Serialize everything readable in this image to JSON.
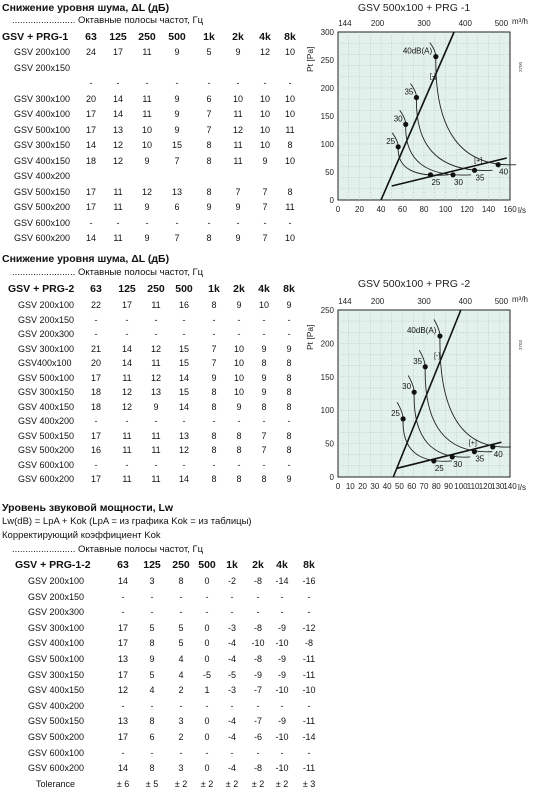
{
  "section1": {
    "title": "Снижение уровня шума, ΔL (дБ)",
    "subtitle": "........................ Октавные полосы частот, Гц",
    "header": [
      "GSV + PRG-1",
      "63",
      "125",
      "250",
      "500",
      "1k",
      "2k",
      "4k",
      "8k"
    ],
    "rows": [
      [
        "GSV  200x100",
        "24",
        "17",
        "11",
        "9",
        "5",
        "9",
        "12",
        "10"
      ],
      [
        "GSV  200x150",
        "",
        "",
        "",
        "",
        "",
        "",
        "",
        ""
      ],
      [
        "",
        "-",
        "-",
        "-",
        "-",
        "-",
        "-",
        "-",
        "-"
      ],
      [
        "GSV  300x100",
        "20",
        "14",
        "11",
        "9",
        "6",
        "10",
        "10",
        "10"
      ],
      [
        "GSV  400x100",
        "17",
        "14",
        "11",
        "9",
        "7",
        "11",
        "10",
        "10"
      ],
      [
        "GSV  500x100",
        "17",
        "13",
        "10",
        "9",
        "7",
        "12",
        "10",
        "11"
      ],
      [
        "GSV  300x150",
        "14",
        "12",
        "10",
        "15",
        "8",
        "11",
        "10",
        "8"
      ],
      [
        "GSV  400x150",
        "18",
        "12",
        "9",
        "7",
        "8",
        "11",
        "9",
        "10"
      ],
      [
        "GSV  400x200",
        "",
        "",
        "",
        "",
        "",
        "",
        "",
        ""
      ],
      [
        "GSV  500x150",
        "17",
        "11",
        "12",
        "13",
        "8",
        "7",
        "7",
        "8"
      ],
      [
        "GSV  500x200",
        "17",
        "11",
        "9",
        "6",
        "9",
        "9",
        "7",
        "11"
      ],
      [
        "GSV  600x100",
        "-",
        "-",
        "-",
        "-",
        "-",
        "-",
        "-",
        "-"
      ],
      [
        "GSV  600x200",
        "14",
        "11",
        "9",
        "7",
        "8",
        "9",
        "7",
        "10"
      ]
    ]
  },
  "section2": {
    "title": "Снижение уровня шума, ΔL (дБ)",
    "subtitle": "........................ Октавные полосы частот, Гц",
    "header": [
      "GSV + PRG-2",
      "63",
      "125",
      "250",
      "500",
      "1k",
      "2k",
      "4k",
      "8k"
    ],
    "rows": [
      [
        "GSV  200x100",
        "22",
        "17",
        "11",
        "16",
        "8",
        "9",
        "10",
        "9"
      ],
      [
        "GSV  200x150",
        "-",
        "-",
        "-",
        "-",
        "-",
        "-",
        "-",
        "-"
      ],
      [
        "GSV  200x300",
        "-",
        "-",
        "-",
        "-",
        "-",
        "-",
        "-",
        "-"
      ],
      [
        "GSV  300x100",
        "21",
        "14",
        "12",
        "15",
        "7",
        "10",
        "9",
        "9"
      ],
      [
        "GSV400x100",
        "20",
        "14",
        "11",
        "15",
        "7",
        "10",
        "8",
        "8"
      ],
      [
        "GSV  500x100",
        "17",
        "11",
        "12",
        "14",
        "9",
        "10",
        "9",
        "8"
      ],
      [
        "GSV  300x150",
        "18",
        "12",
        "13",
        "15",
        "8",
        "10",
        "9",
        "8"
      ],
      [
        "GSV  400x150",
        "18",
        "12",
        "9",
        "14",
        "8",
        "9",
        "8",
        "8"
      ],
      [
        "GSV  400x200",
        "-",
        "-",
        "-",
        "-",
        "-",
        "-",
        "-",
        "-"
      ],
      [
        "GSV  500x150",
        "17",
        "11",
        "11",
        "13",
        "8",
        "8",
        "7",
        "8"
      ],
      [
        "GSV  500x200",
        "16",
        "11",
        "11",
        "12",
        "8",
        "8",
        "7",
        "8"
      ],
      [
        "GSV  600x100",
        "-",
        "-",
        "-",
        "-",
        "-",
        "-",
        "-",
        "-"
      ],
      [
        "GSV  600x200",
        "17",
        "11",
        "11",
        "14",
        "8",
        "8",
        "8",
        "9"
      ]
    ]
  },
  "section3": {
    "title": "Уровень звуковой мощности, Lw",
    "formula": "Lw(dB) = LpA + Kok (LpA = из графика Kok = из таблицы)",
    "correction": "Корректирующий коэффициент  Kok",
    "subtitle": "........................ Октавные полосы частот, Гц",
    "header": [
      "GSV + PRG-1-2",
      "63",
      "125",
      "250",
      "500",
      "1k",
      "2k",
      "4k",
      "8k"
    ],
    "rows": [
      [
        "GSV  200x100",
        "14",
        "3",
        "8",
        "0",
        "-2",
        "-8",
        "-14",
        "-16"
      ],
      [
        "GSV  200x150",
        "-",
        "-",
        "-",
        "-",
        "-",
        "-",
        "-",
        "-"
      ],
      [
        "GSV  200x300",
        "-",
        "-",
        "-",
        "-",
        "-",
        "-",
        "-",
        "-"
      ],
      [
        "GSV  300x100",
        "17",
        "5",
        "5",
        "0",
        "-3",
        "-8",
        "-9",
        "-12"
      ],
      [
        "GSV  400x100",
        "17",
        "8",
        "5",
        "0",
        "-4",
        "-10",
        "-10",
        "-8"
      ],
      [
        "GSV  500x100",
        "13",
        "9",
        "4",
        "0",
        "-4",
        "-8",
        "-9",
        "-11"
      ],
      [
        "GSV  300x150",
        "17",
        "5",
        "4",
        "-5",
        "-5",
        "-9",
        "-9",
        "-11"
      ],
      [
        "GSV  400x150",
        "12",
        "4",
        "2",
        "1",
        "-3",
        "-7",
        "-10",
        "-10"
      ],
      [
        "GSV  400x200",
        "-",
        "-",
        "-",
        "-",
        "-",
        "-",
        "-",
        "-"
      ],
      [
        "GSV  500x150",
        "13",
        "8",
        "3",
        "0",
        "-4",
        "-7",
        "-9",
        "-11"
      ],
      [
        "GSV  500x200",
        "17",
        "6",
        "2",
        "0",
        "-4",
        "-6",
        "-10",
        "-14"
      ],
      [
        "GSV  600x100",
        "-",
        "-",
        "-",
        "-",
        "-",
        "-",
        "-",
        "-"
      ],
      [
        "GSV  600x200",
        "14",
        "8",
        "3",
        "0",
        "-4",
        "-8",
        "-10",
        "-11"
      ]
    ],
    "tolerance": [
      "Tolerance",
      "± 6",
      "± 5",
      "± 2",
      "± 2",
      "± 2",
      "± 2",
      "± 2",
      "± 3"
    ]
  },
  "chart_data": [
    {
      "type": "line",
      "title": "GSV 500x100 + PRG -1",
      "xlabel": "l/s",
      "ylabel": "P_t [Pa]",
      "top_axis_label": "m³/h",
      "x_ticks": [
        "0",
        "20",
        "40",
        "60",
        "80",
        "100",
        "120",
        "140",
        "160"
      ],
      "y_ticks": [
        "0",
        "50",
        "100",
        "150",
        "200",
        "250",
        "300"
      ],
      "top_ticks": [
        "144",
        "200",
        "300",
        "400",
        "500"
      ],
      "xlim": [
        0,
        160
      ],
      "ylim": [
        0,
        300
      ],
      "grid": true,
      "side_code": "3700",
      "sound_labels": [
        "25",
        "30",
        "35",
        "40dB(A)"
      ],
      "lower_labels": [
        "25",
        "30",
        "35",
        "40"
      ],
      "bracket": "[-]",
      "bracket2": "[+]",
      "series": [
        {
          "points": [
            [
              40,
              0
            ],
            [
              108,
              300
            ]
          ]
        },
        {
          "points": [
            [
              50,
              25
            ],
            [
              157,
              75
            ]
          ]
        }
      ],
      "markers": [
        {
          "x": 56,
          "y": 95,
          "label": "25"
        },
        {
          "x": 63,
          "y": 135,
          "label": "30"
        },
        {
          "x": 73,
          "y": 183,
          "label": "35"
        },
        {
          "x": 91,
          "y": 256,
          "label": "40dB(A)"
        },
        {
          "x": 86,
          "y": 45,
          "label": "25"
        },
        {
          "x": 107,
          "y": 45,
          "label": "30"
        },
        {
          "x": 127,
          "y": 53,
          "label": "35"
        },
        {
          "x": 149,
          "y": 63,
          "label": "40"
        }
      ]
    },
    {
      "type": "line",
      "title": "GSV 500x100 + PRG -2",
      "xlabel": "l/s",
      "ylabel": "P_t [Pa]",
      "top_axis_label": "m³/h",
      "x_ticks": [
        "0",
        "10",
        "20",
        "30",
        "40",
        "50",
        "60",
        "70",
        "80",
        "90",
        "100",
        "110",
        "120",
        "130",
        "140"
      ],
      "y_ticks": [
        "0",
        "50",
        "100",
        "150",
        "200",
        "250"
      ],
      "top_ticks": [
        "144",
        "200",
        "300",
        "400",
        "500"
      ],
      "xlim": [
        0,
        140
      ],
      "ylim": [
        0,
        250
      ],
      "grid": true,
      "side_code": "3703",
      "sound_labels": [
        "25",
        "30",
        "35",
        "40dB(A)"
      ],
      "lower_labels": [
        "25",
        "30",
        "35",
        "40"
      ],
      "bracket": "[-]",
      "bracket2": "[+]",
      "series": [
        {
          "points": [
            [
              45,
              0
            ],
            [
              100,
              250
            ]
          ]
        },
        {
          "points": [
            [
              48,
              13
            ],
            [
              133,
              52
            ]
          ]
        }
      ],
      "markers": [
        {
          "x": 53,
          "y": 87,
          "label": "25"
        },
        {
          "x": 62,
          "y": 127,
          "label": "30"
        },
        {
          "x": 71,
          "y": 165,
          "label": "35"
        },
        {
          "x": 83,
          "y": 211,
          "label": "40dB(A)"
        },
        {
          "x": 78,
          "y": 24,
          "label": "25"
        },
        {
          "x": 93,
          "y": 30,
          "label": "30"
        },
        {
          "x": 111,
          "y": 38,
          "label": "35"
        },
        {
          "x": 126,
          "y": 45,
          "label": "40"
        }
      ]
    }
  ]
}
